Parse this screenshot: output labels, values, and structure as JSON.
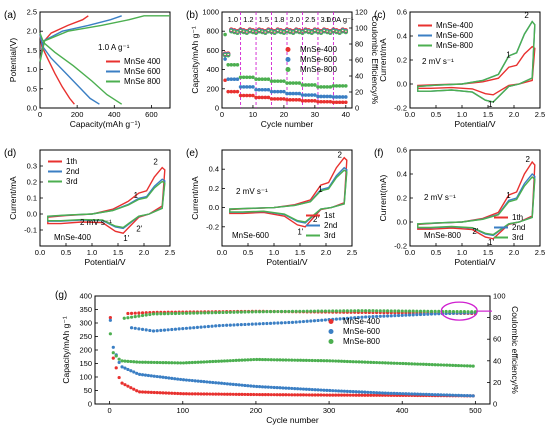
{
  "colors": {
    "MnSe-400": "#e8312f",
    "MnSe-600": "#3b7fc4",
    "MnSe-800": "#4caf50",
    "magenta": "#d020d0"
  },
  "chart_data": [
    {
      "id": "a",
      "panel_label": "(a)",
      "type": "line",
      "xlabel": "Capacity(mAh g⁻¹)",
      "ylabel": "Potential(V)",
      "xlim": [
        0,
        700
      ],
      "ylim": [
        0,
        2.5
      ],
      "xticks": [
        0,
        200,
        400,
        600
      ],
      "yticks": [
        0.0,
        0.5,
        1.0,
        1.5,
        2.0,
        2.5
      ],
      "annotation": "1.0 A g⁻¹",
      "legend_position": "center-right",
      "series": [
        {
          "name": "MnSe 400",
          "color": "#e8312f",
          "discharge": [
            [
              0,
              1.9
            ],
            [
              10,
              1.6
            ],
            [
              40,
              1.3
            ],
            [
              80,
              0.9
            ],
            [
              120,
              0.55
            ],
            [
              160,
              0.25
            ],
            [
              185,
              0.1
            ]
          ],
          "charge": [
            [
              0,
              1.2
            ],
            [
              15,
              1.7
            ],
            [
              60,
              1.95
            ],
            [
              150,
              2.15
            ],
            [
              230,
              2.3
            ],
            [
              260,
              2.4
            ]
          ]
        },
        {
          "name": "MnSe 600",
          "color": "#3b7fc4",
          "discharge": [
            [
              0,
              1.9
            ],
            [
              15,
              1.6
            ],
            [
              60,
              1.3
            ],
            [
              140,
              0.9
            ],
            [
              210,
              0.55
            ],
            [
              270,
              0.25
            ],
            [
              320,
              0.1
            ]
          ],
          "charge": [
            [
              0,
              1.2
            ],
            [
              20,
              1.75
            ],
            [
              120,
              2.0
            ],
            [
              260,
              2.15
            ],
            [
              380,
              2.3
            ],
            [
              440,
              2.4
            ]
          ]
        },
        {
          "name": "MnSe 800",
          "color": "#4caf50",
          "discharge": [
            [
              0,
              1.95
            ],
            [
              20,
              1.7
            ],
            [
              80,
              1.45
            ],
            [
              180,
              1.1
            ],
            [
              280,
              0.7
            ],
            [
              360,
              0.35
            ],
            [
              440,
              0.1
            ]
          ],
          "charge": [
            [
              0,
              1.2
            ],
            [
              25,
              1.75
            ],
            [
              150,
              2.0
            ],
            [
              330,
              2.15
            ],
            [
              480,
              2.3
            ],
            [
              560,
              2.4
            ],
            [
              700,
              2.4
            ]
          ]
        }
      ]
    },
    {
      "id": "b",
      "panel_label": "(b)",
      "type": "scatter",
      "xlabel": "Cycle number",
      "ylabel": "Capacity/mAh g⁻¹",
      "y2label": "Coulombic Efficiency/%",
      "xlim": [
        0,
        42
      ],
      "ylim": [
        0,
        1000
      ],
      "y2lim": [
        0,
        120
      ],
      "xticks": [
        0,
        10,
        20,
        30,
        40
      ],
      "yticks": [
        0,
        200,
        400,
        600,
        800,
        1000
      ],
      "y2ticks": [
        0,
        20,
        40,
        60,
        80,
        100,
        120
      ],
      "rate_labels": [
        "1.0",
        "1.2",
        "1.5",
        "1.8",
        "2.0",
        "2.5",
        "3.0",
        "1.0A g⁻¹"
      ],
      "rate_boundaries": [
        6,
        11,
        16,
        21,
        26,
        31,
        36
      ],
      "legend_position": "right",
      "series": [
        {
          "name": "MnSe-400",
          "color": "#e8312f",
          "capacity_levels": [
            170,
            130,
            110,
            95,
            85,
            75,
            65,
            60
          ],
          "ce": 98
        },
        {
          "name": "MnSe-600",
          "color": "#3b7fc4",
          "capacity_levels": [
            300,
            220,
            190,
            170,
            150,
            135,
            120,
            115
          ],
          "ce": 97
        },
        {
          "name": "MnSe-800",
          "color": "#4caf50",
          "capacity_levels": [
            450,
            320,
            300,
            280,
            260,
            240,
            220,
            230
          ],
          "ce": 96
        }
      ]
    },
    {
      "id": "c",
      "panel_label": "(c)",
      "type": "line",
      "xlabel": "Potential/V",
      "ylabel": "Current/mA",
      "xlim": [
        0,
        2.5
      ],
      "ylim": [
        -0.2,
        0.6
      ],
      "xticks": [
        0.0,
        0.5,
        1.0,
        1.5,
        2.0,
        2.5
      ],
      "yticks": [
        -0.2,
        0.0,
        0.2,
        0.4,
        0.6
      ],
      "annotations": [
        "2 mV s⁻¹",
        "1",
        "2",
        "1'"
      ],
      "legend_position": "top-left",
      "series": [
        {
          "name": "MnSe-400",
          "color": "#e8312f",
          "scale": 0.6
        },
        {
          "name": "MnSe-600",
          "color": "#3b7fc4",
          "scale": 1.0
        },
        {
          "name": "MnSe-800",
          "color": "#4caf50",
          "scale": 1.0
        }
      ]
    },
    {
      "id": "d",
      "panel_label": "(d)",
      "type": "line",
      "xlabel": "Potential/V",
      "ylabel": "Current/mA",
      "xlim": [
        0,
        2.5
      ],
      "ylim": [
        -0.2,
        0.4
      ],
      "xticks": [
        0.0,
        0.5,
        1.0,
        1.5,
        2.0,
        2.5
      ],
      "yticks": [
        -0.1,
        0.0,
        0.1,
        0.2,
        0.3
      ],
      "annotations": [
        "2 mV s⁻¹",
        "MnSe-400",
        "1",
        "2",
        "1'",
        "2'"
      ],
      "legend_position": "top-left",
      "series": [
        {
          "name": "1th",
          "color": "#e8312f",
          "scale": 1.0
        },
        {
          "name": "2nd",
          "color": "#3b7fc4",
          "scale": 0.75
        },
        {
          "name": "3rd",
          "color": "#4caf50",
          "scale": 0.7
        }
      ]
    },
    {
      "id": "e",
      "panel_label": "(e)",
      "type": "line",
      "xlabel": "Potential/V",
      "ylabel": "Current/mA",
      "xlim": [
        0,
        2.5
      ],
      "ylim": [
        -0.4,
        0.6
      ],
      "xticks": [
        0.0,
        0.5,
        1.0,
        1.5,
        2.0,
        2.5
      ],
      "yticks": [
        -0.2,
        0.0,
        0.2,
        0.4
      ],
      "annotations": [
        "2 mV s⁻¹",
        "MnSe-600",
        "1",
        "2",
        "1'",
        "2'"
      ],
      "legend_position": "bottom-right",
      "series": [
        {
          "name": "1st",
          "color": "#e8312f",
          "scale": 1.0
        },
        {
          "name": "2nd",
          "color": "#3b7fc4",
          "scale": 0.8
        },
        {
          "name": "3rd",
          "color": "#4caf50",
          "scale": 0.75
        }
      ]
    },
    {
      "id": "f",
      "panel_label": "(f)",
      "type": "line",
      "xlabel": "Potential/V",
      "ylabel": "Current(mA)",
      "xlim": [
        0,
        2.5
      ],
      "ylim": [
        -0.2,
        0.6
      ],
      "xticks": [
        0.0,
        0.5,
        1.0,
        1.5,
        2.0,
        2.5
      ],
      "yticks": [
        -0.2,
        0.0,
        0.2,
        0.4,
        0.6
      ],
      "annotations": [
        "2 mV s⁻¹",
        "MnSe-800",
        "1",
        "2",
        "1'",
        "2'"
      ],
      "legend_position": "bottom-right",
      "series": [
        {
          "name": "1th",
          "color": "#e8312f",
          "scale": 1.0
        },
        {
          "name": "2nd",
          "color": "#3b7fc4",
          "scale": 0.8
        },
        {
          "name": "3rd",
          "color": "#4caf50",
          "scale": 0.75
        }
      ]
    },
    {
      "id": "g",
      "panel_label": "(g)",
      "type": "scatter",
      "xlabel": "Cycle number",
      "ylabel": "Capacity/mAh g⁻¹",
      "y2label": "Coulombic efficiency/%",
      "xlim": [
        -20,
        520
      ],
      "ylim": [
        0,
        400
      ],
      "y2lim": [
        0,
        100
      ],
      "xticks": [
        0,
        100,
        200,
        300,
        400,
        500
      ],
      "yticks": [
        0,
        50,
        100,
        150,
        200,
        250,
        300,
        350,
        400
      ],
      "y2ticks": [
        0,
        20,
        40,
        60,
        80,
        100
      ],
      "legend_position": "center-right",
      "series": [
        {
          "name": "MnSe-400",
          "color": "#e8312f",
          "capacity": [
            [
              1,
              320
            ],
            [
              5,
              170
            ],
            [
              15,
              80
            ],
            [
              40,
              45
            ],
            [
              100,
              38
            ],
            [
              200,
              35
            ],
            [
              300,
              33
            ],
            [
              400,
              32
            ],
            [
              500,
              30
            ]
          ],
          "ce": [
            [
              25,
              85
            ],
            [
              60,
              86
            ],
            [
              200,
              87
            ],
            [
              350,
              86
            ],
            [
              500,
              85
            ]
          ]
        },
        {
          "name": "MnSe-600",
          "color": "#3b7fc4",
          "capacity": [
            [
              1,
              310
            ],
            [
              5,
              210
            ],
            [
              15,
              140
            ],
            [
              40,
              110
            ],
            [
              100,
              90
            ],
            [
              200,
              65
            ],
            [
              300,
              50
            ],
            [
              380,
              40
            ],
            [
              500,
              30
            ]
          ],
          "ce": [
            [
              30,
              70
            ],
            [
              60,
              67
            ],
            [
              150,
              72
            ],
            [
              250,
              75
            ],
            [
              350,
              80
            ],
            [
              450,
              83
            ],
            [
              500,
              84
            ]
          ]
        },
        {
          "name": "MnSe-800",
          "color": "#4caf50",
          "capacity": [
            [
              1,
              260
            ],
            [
              5,
              190
            ],
            [
              15,
              160
            ],
            [
              40,
              155
            ],
            [
              100,
              152
            ],
            [
              200,
              165
            ],
            [
              300,
              160
            ],
            [
              400,
              150
            ],
            [
              500,
              140
            ]
          ],
          "ce": [
            [
              20,
              80
            ],
            [
              60,
              84
            ],
            [
              200,
              86
            ],
            [
              350,
              87
            ],
            [
              500,
              86
            ]
          ]
        }
      ]
    }
  ]
}
